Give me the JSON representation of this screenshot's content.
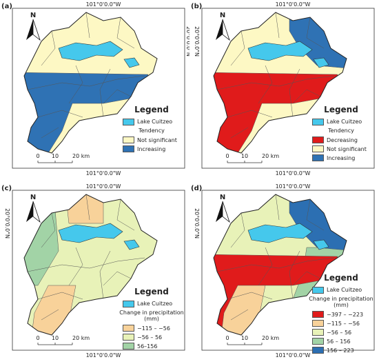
{
  "panels": [
    {
      "label": "(a)",
      "top_coordinate": "101°0'0.0\"W",
      "bottom_coordinate": "101°0'0.0\"W",
      "side_coordinate": "20°0'0.0\"N",
      "north": "N",
      "legend": {
        "title": "Legend",
        "lake": {
          "name": "Lake Cuitzeo",
          "color": "#45c8ec"
        },
        "group_title": "Tendency",
        "items": [
          {
            "name": "Not significant",
            "color": "#fdf8c4"
          },
          {
            "name": "Increasing",
            "color": "#2f72b4"
          }
        ]
      },
      "scale": [
        "0",
        "10",
        "20 km"
      ]
    },
    {
      "label": "(b)",
      "top_coordinate": "101°0'0.0\"W",
      "bottom_coordinate": "101°0'0.0\"W",
      "side_coordinate": "20°0'0.0\"N",
      "north": "N",
      "legend": {
        "title": "Legend",
        "lake": {
          "name": "Lake Cuitzeo",
          "color": "#45c8ec"
        },
        "group_title": "Tendency",
        "items": [
          {
            "name": "Decreasing",
            "color": "#e01b1b"
          },
          {
            "name": "Not significant",
            "color": "#fdf8c4"
          },
          {
            "name": "Increasing",
            "color": "#2f72b4"
          }
        ]
      },
      "scale": [
        "0",
        "10",
        "20 km"
      ]
    },
    {
      "label": "(c)",
      "top_coordinate": "101°0'0.0\"W",
      "bottom_coordinate": "101°0'0.0\"W",
      "side_coordinate": "20°0'0.0\"N",
      "north": "N",
      "legend": {
        "title": "Legend",
        "lake": {
          "name": "Lake Cuitzeo",
          "color": "#45c8ec"
        },
        "group_title": "Change in precipitation (mm)",
        "items": [
          {
            "name": "−115 – −56",
            "color": "#f8d29a"
          },
          {
            "name": "−56 – 56",
            "color": "#e8f2b8"
          },
          {
            "name": "56–156",
            "color": "#a2d3a6"
          }
        ]
      },
      "scale": [
        "0",
        "10",
        "20 km"
      ]
    },
    {
      "label": "(d)",
      "top_coordinate": "101°0'0.0\"W",
      "bottom_coordinate": "101°0'0.0\"W",
      "side_coordinate": "20°0'0.0\"N",
      "north": "N",
      "legend": {
        "title": "Legend",
        "lake": {
          "name": "Lake Cuitzeo",
          "color": "#45c8ec"
        },
        "group_title": "Change in precipitation (mm)",
        "items": [
          {
            "name": "−397 – −223",
            "color": "#e01b1b"
          },
          {
            "name": "−115 – −56",
            "color": "#f8d29a"
          },
          {
            "name": "−56 – 56",
            "color": "#e8f2b8"
          },
          {
            "name": "56 – 156",
            "color": "#a2d3a6"
          },
          {
            "name": "156 – 223",
            "color": "#2c6fb2"
          }
        ]
      },
      "scale": [
        "0",
        "10",
        "20 km"
      ]
    }
  ]
}
